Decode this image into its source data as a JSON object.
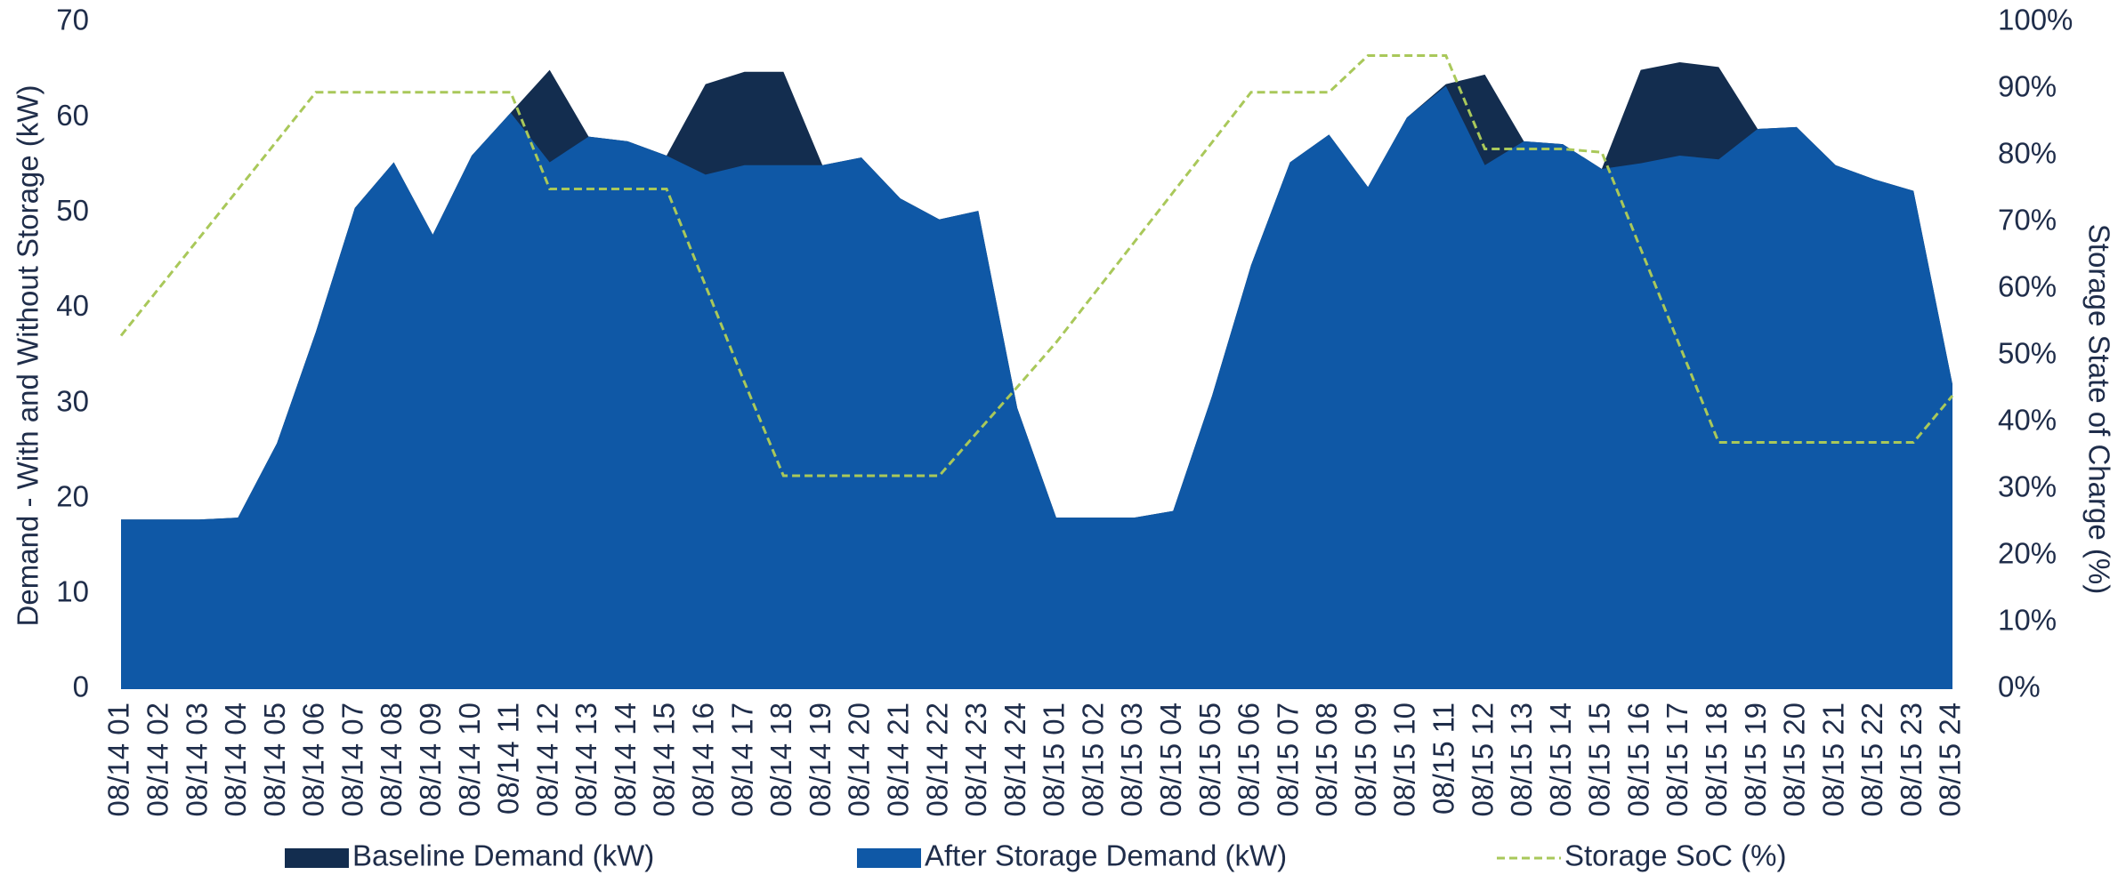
{
  "chart_data": {
    "type": "area",
    "categories": [
      "08/14 01",
      "08/14 02",
      "08/14 03",
      "08/14 04",
      "08/14 05",
      "08/14 06",
      "08/14 07",
      "08/14 08",
      "08/14 09",
      "08/14 10",
      "08/14 11",
      "08/14 12",
      "08/14 13",
      "08/14 14",
      "08/14 15",
      "08/14 16",
      "08/14 17",
      "08/14 18",
      "08/14 19",
      "08/14 20",
      "08/14 21",
      "08/14 22",
      "08/14 23",
      "08/14 24",
      "08/15 01",
      "08/15 02",
      "08/15 03",
      "08/15 04",
      "08/15 05",
      "08/15 06",
      "08/15 07",
      "08/15 08",
      "08/15 09",
      "08/15 10",
      "08/15 11",
      "08/15 12",
      "08/15 13",
      "08/15 14",
      "08/15 15",
      "08/15 16",
      "08/15 17",
      "08/15 18",
      "08/15 19",
      "08/15 20",
      "08/15 21",
      "08/15 22",
      "08/15 23",
      "08/15 24"
    ],
    "series": [
      {
        "name": "Baseline Demand (kW)",
        "color": "#132d4f",
        "kind": "area",
        "values": [
          17.8,
          17.8,
          17.8,
          18,
          25.8,
          37.5,
          50.5,
          55.3,
          47.7,
          56,
          60.5,
          65,
          58,
          57.5,
          56,
          63.5,
          64.8,
          64.8,
          55,
          55.8,
          51.5,
          49.3,
          50.2,
          29.5,
          18,
          18,
          18,
          18.7,
          30.8,
          44.5,
          55.3,
          58.2,
          52.7,
          60,
          63.5,
          64.5,
          57.5,
          57.2,
          54.6,
          65,
          65.8,
          65.3,
          58.8,
          59,
          55,
          53.5,
          52.3,
          32
        ]
      },
      {
        "name": "After Storage Demand (kW)",
        "color": "#0f58a6",
        "kind": "area",
        "values": [
          17.8,
          17.8,
          17.8,
          18,
          25.8,
          37.5,
          50.5,
          55.3,
          47.7,
          56,
          60.5,
          55.3,
          58,
          57.5,
          56,
          54,
          55,
          55,
          55,
          55.8,
          51.5,
          49.3,
          50.2,
          29.5,
          18,
          18,
          18,
          18.7,
          30.8,
          44.5,
          55.3,
          58.2,
          52.7,
          60,
          63.3,
          55,
          57.5,
          57.2,
          54.6,
          55.2,
          56,
          55.6,
          58.8,
          59,
          55,
          53.5,
          52.3,
          32
        ]
      },
      {
        "name": "Storage SoC (%)",
        "color": "#a9c85a",
        "kind": "line",
        "axis": "y2",
        "dashed": true,
        "values": [
          53,
          60.3,
          67.6,
          74.9,
          82.2,
          89.5,
          89.5,
          89.5,
          89.5,
          89.5,
          89.5,
          75,
          75,
          75,
          75,
          60.5,
          46,
          32,
          32,
          32,
          32,
          32,
          38.7,
          45.3,
          52,
          59.5,
          67,
          74.5,
          82,
          89.5,
          89.5,
          89.5,
          95,
          95,
          95,
          81,
          81,
          81,
          80.5,
          66,
          51.5,
          37,
          37,
          37,
          37,
          37,
          37,
          44
        ]
      }
    ],
    "ylabel": "Demand - With and Without Storage (kW)",
    "y2label": "Storage State of Charge (%)",
    "ylim": [
      0,
      70
    ],
    "yticks": [
      0,
      10,
      20,
      30,
      40,
      50,
      60,
      70
    ],
    "y2lim": [
      0,
      100
    ],
    "y2ticks": [
      {
        "value": 0,
        "label": "0%"
      },
      {
        "value": 10,
        "label": "10%"
      },
      {
        "value": 20,
        "label": "20%"
      },
      {
        "value": 30,
        "label": "30%"
      },
      {
        "value": 40,
        "label": "40%"
      },
      {
        "value": 50,
        "label": "50%"
      },
      {
        "value": 60,
        "label": "60%"
      },
      {
        "value": 70,
        "label": "70%"
      },
      {
        "value": 80,
        "label": "80%"
      },
      {
        "value": 90,
        "label": "90%"
      },
      {
        "value": 100,
        "label": "100%"
      }
    ],
    "legend": "bottom"
  }
}
